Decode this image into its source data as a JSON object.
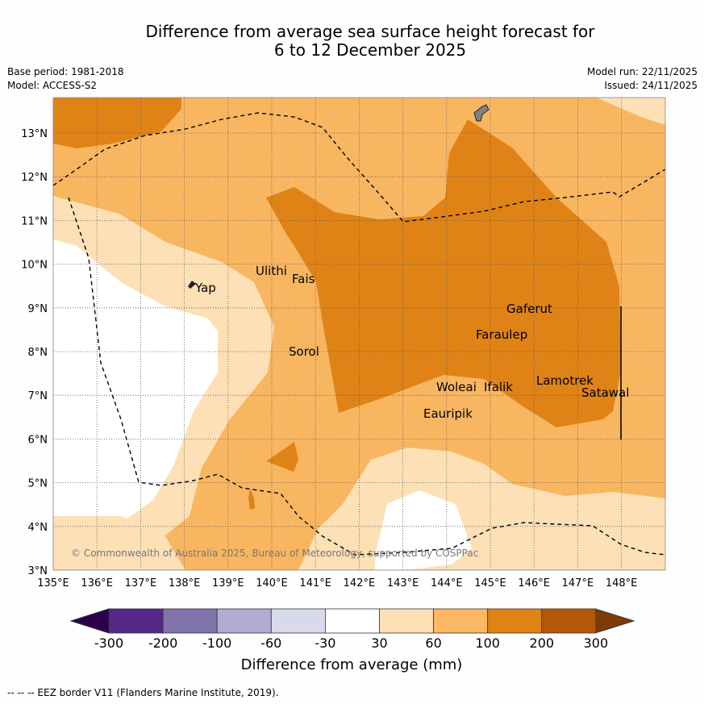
{
  "header": {
    "title_line1": "Difference from average sea surface height forecast for",
    "title_line2": "6 to 12 December 2025",
    "base_period": "Base period: 1981-2018",
    "model": "Model: ACCESS-S2",
    "model_run": "Model run: 22/11/2025",
    "issued": "Issued: 24/11/2025"
  },
  "map": {
    "copyright": "© Commonwealth of Australia 2025, Bureau of Meteorology, supported by COSPPac",
    "lon_labels": [
      "135°E",
      "136°E",
      "137°E",
      "138°E",
      "139°E",
      "140°E",
      "141°E",
      "142°E",
      "143°E",
      "144°E",
      "145°E",
      "146°E",
      "147°E",
      "148°E"
    ],
    "lat_labels": [
      "3°N",
      "4°N",
      "5°N",
      "6°N",
      "7°N",
      "8°N",
      "9°N",
      "10°N",
      "11°N",
      "12°N",
      "13°N"
    ],
    "places": [
      "Yap",
      "Ulithi",
      "Fais",
      "Sorol",
      "Gaferut",
      "Faraulep",
      "Woleai",
      "Ifalik",
      "Lamotrek",
      "Satawal",
      "Eauripik"
    ],
    "colors": {
      "white": "#ffffff",
      "light": "#fde0b6",
      "medium": "#f9b661",
      "dark": "#e08316",
      "darker": "#b35806",
      "land": "#808080"
    }
  },
  "legend": {
    "tick_labels": [
      "-300",
      "-200",
      "-100",
      "-60",
      "-30",
      "30",
      "60",
      "100",
      "200",
      "300"
    ],
    "colors": [
      "#2d004b",
      "#542788",
      "#8073ac",
      "#b2abd2",
      "#d8daeb",
      "#ffffff",
      "#fee0b6",
      "#fdb863",
      "#e08214",
      "#b35806",
      "#7f3b08"
    ],
    "label": "Difference from average (mm)"
  },
  "footer": {
    "eez_note": "--  --  -- EEZ border V11 (Flanders Marine Institute, 2019)."
  }
}
